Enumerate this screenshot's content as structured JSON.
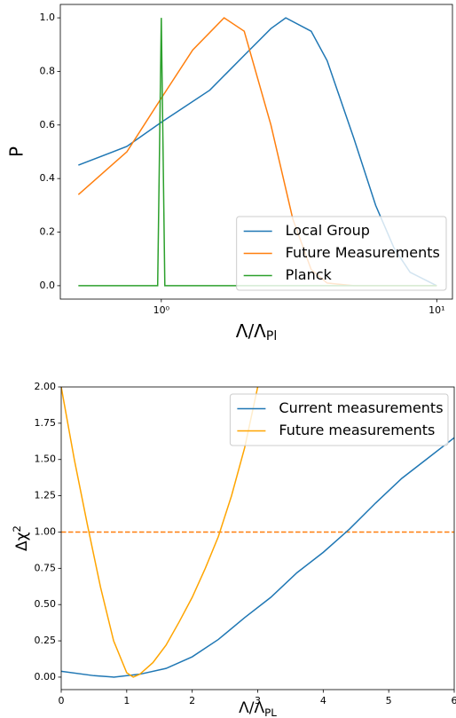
{
  "chart_data": [
    {
      "type": "line",
      "log_x": true,
      "xlabel": {
        "base": "Λ/Λ",
        "sub": "Pl"
      },
      "ylabel": "P",
      "xlim": [
        0.43,
        11.4
      ],
      "ylim": [
        -0.05,
        1.05
      ],
      "xticks": [
        {
          "value": 1,
          "label": "10⁰"
        },
        {
          "value": 10,
          "label": "10¹"
        }
      ],
      "yticks": [
        {
          "value": 0,
          "label": "0.0"
        },
        {
          "value": 0.2,
          "label": "0.2"
        },
        {
          "value": 0.4,
          "label": "0.4"
        },
        {
          "value": 0.6,
          "label": "0.6"
        },
        {
          "value": 0.8,
          "label": "0.8"
        },
        {
          "value": 1,
          "label": "1.0"
        }
      ],
      "legend": "lower right",
      "series": [
        {
          "name": "Local Group",
          "color": "#1f77b4",
          "x": [
            0.5,
            0.75,
            1.0,
            1.5,
            2.0,
            2.5,
            2.83,
            3.5,
            4.0,
            5.0,
            6.0,
            7.0,
            8.0,
            10.0
          ],
          "values": [
            0.45,
            0.52,
            0.61,
            0.73,
            0.86,
            0.96,
            1.0,
            0.95,
            0.84,
            0.55,
            0.3,
            0.14,
            0.05,
            0.0
          ]
        },
        {
          "name": "Future Measurements",
          "color": "#ff7f0e",
          "x": [
            0.5,
            0.75,
            1.0,
            1.3,
            1.69,
            2.0,
            2.5,
            3.0,
            3.5,
            4.0,
            5.0,
            10.0
          ],
          "values": [
            0.34,
            0.5,
            0.7,
            0.88,
            1.0,
            0.95,
            0.6,
            0.25,
            0.06,
            0.01,
            0.0,
            0.0
          ]
        },
        {
          "name": "Planck",
          "color": "#2ca02c",
          "x": [
            0.5,
            0.97,
            0.985,
            1.0,
            1.015,
            1.03,
            10.0
          ],
          "values": [
            0.0,
            0.0,
            0.5,
            1.0,
            0.5,
            0.0,
            0.0
          ]
        }
      ]
    },
    {
      "type": "line",
      "log_x": false,
      "xlabel": {
        "base": "Λ/Λ",
        "sub": "PL"
      },
      "ylabel": {
        "base": "Δχ",
        "sup": "2"
      },
      "xlim": [
        0,
        6
      ],
      "ylim": [
        -0.086,
        2.0
      ],
      "xticks": [
        0,
        1,
        2,
        3,
        4,
        5,
        6
      ],
      "yticks": [
        {
          "value": 0,
          "label": "0.00"
        },
        {
          "value": 0.25,
          "label": "0.25"
        },
        {
          "value": 0.5,
          "label": "0.50"
        },
        {
          "value": 0.75,
          "label": "0.75"
        },
        {
          "value": 1,
          "label": "1.00"
        },
        {
          "value": 1.25,
          "label": "1.25"
        },
        {
          "value": 1.5,
          "label": "1.50"
        },
        {
          "value": 1.75,
          "label": "1.75"
        },
        {
          "value": 2,
          "label": "2.00"
        }
      ],
      "legend": "upper right",
      "hline": {
        "value": 1,
        "color": "#ff7f0e"
      },
      "series": [
        {
          "name": "Current measurements",
          "color": "#1f77b4",
          "x": [
            0,
            0.5,
            0.8,
            1.2,
            1.6,
            2.0,
            2.4,
            2.8,
            3.2,
            3.6,
            4.0,
            4.4,
            4.8,
            5.2,
            5.6,
            6.0
          ],
          "values": [
            0.04,
            0.01,
            0.0,
            0.02,
            0.06,
            0.14,
            0.26,
            0.41,
            0.55,
            0.72,
            0.86,
            1.02,
            1.2,
            1.37,
            1.51,
            1.65
          ]
        },
        {
          "name": "Future measurements",
          "color": "#ffa500",
          "x": [
            0,
            0.2,
            0.4,
            0.6,
            0.8,
            1.0,
            1.1,
            1.2,
            1.4,
            1.6,
            1.8,
            2.0,
            2.2,
            2.4,
            2.6,
            2.8,
            3.0
          ],
          "values": [
            2.0,
            1.5,
            1.05,
            0.62,
            0.25,
            0.03,
            0.0,
            0.02,
            0.1,
            0.22,
            0.38,
            0.55,
            0.75,
            0.97,
            1.25,
            1.58,
            2.0
          ]
        }
      ]
    }
  ]
}
